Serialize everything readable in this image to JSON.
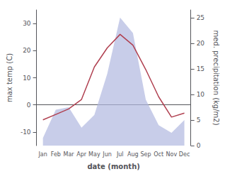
{
  "chart_data": {
    "type": "line",
    "xlabel": "date (month)",
    "ylabel": "max temp (C)",
    "y2label": "med. precipitation (kg/m2)",
    "categories": [
      "Jan",
      "Feb",
      "Mar",
      "Apr",
      "May",
      "Jun",
      "Jul",
      "Aug",
      "Sep",
      "Oct",
      "Nov",
      "Dec"
    ],
    "series": [
      {
        "type": "area",
        "axis": "y2",
        "color": "#b0b8e0",
        "values": [
          1.5,
          7,
          7.5,
          3.5,
          6,
          14,
          25,
          22,
          9,
          4,
          2.5,
          5
        ]
      },
      {
        "type": "line",
        "color": "#b04050",
        "values": [
          -5.5,
          -3.5,
          -1.5,
          2,
          14,
          21,
          26,
          22,
          13,
          3,
          -4.5,
          -3
        ]
      }
    ],
    "ylim": [
      -15,
      35
    ],
    "yticks": [
      -10,
      0,
      10,
      20,
      30
    ],
    "y2lim": [
      0,
      26.5
    ],
    "y2ticks": [
      0,
      5,
      10,
      15,
      20,
      25
    ],
    "grid": false
  }
}
